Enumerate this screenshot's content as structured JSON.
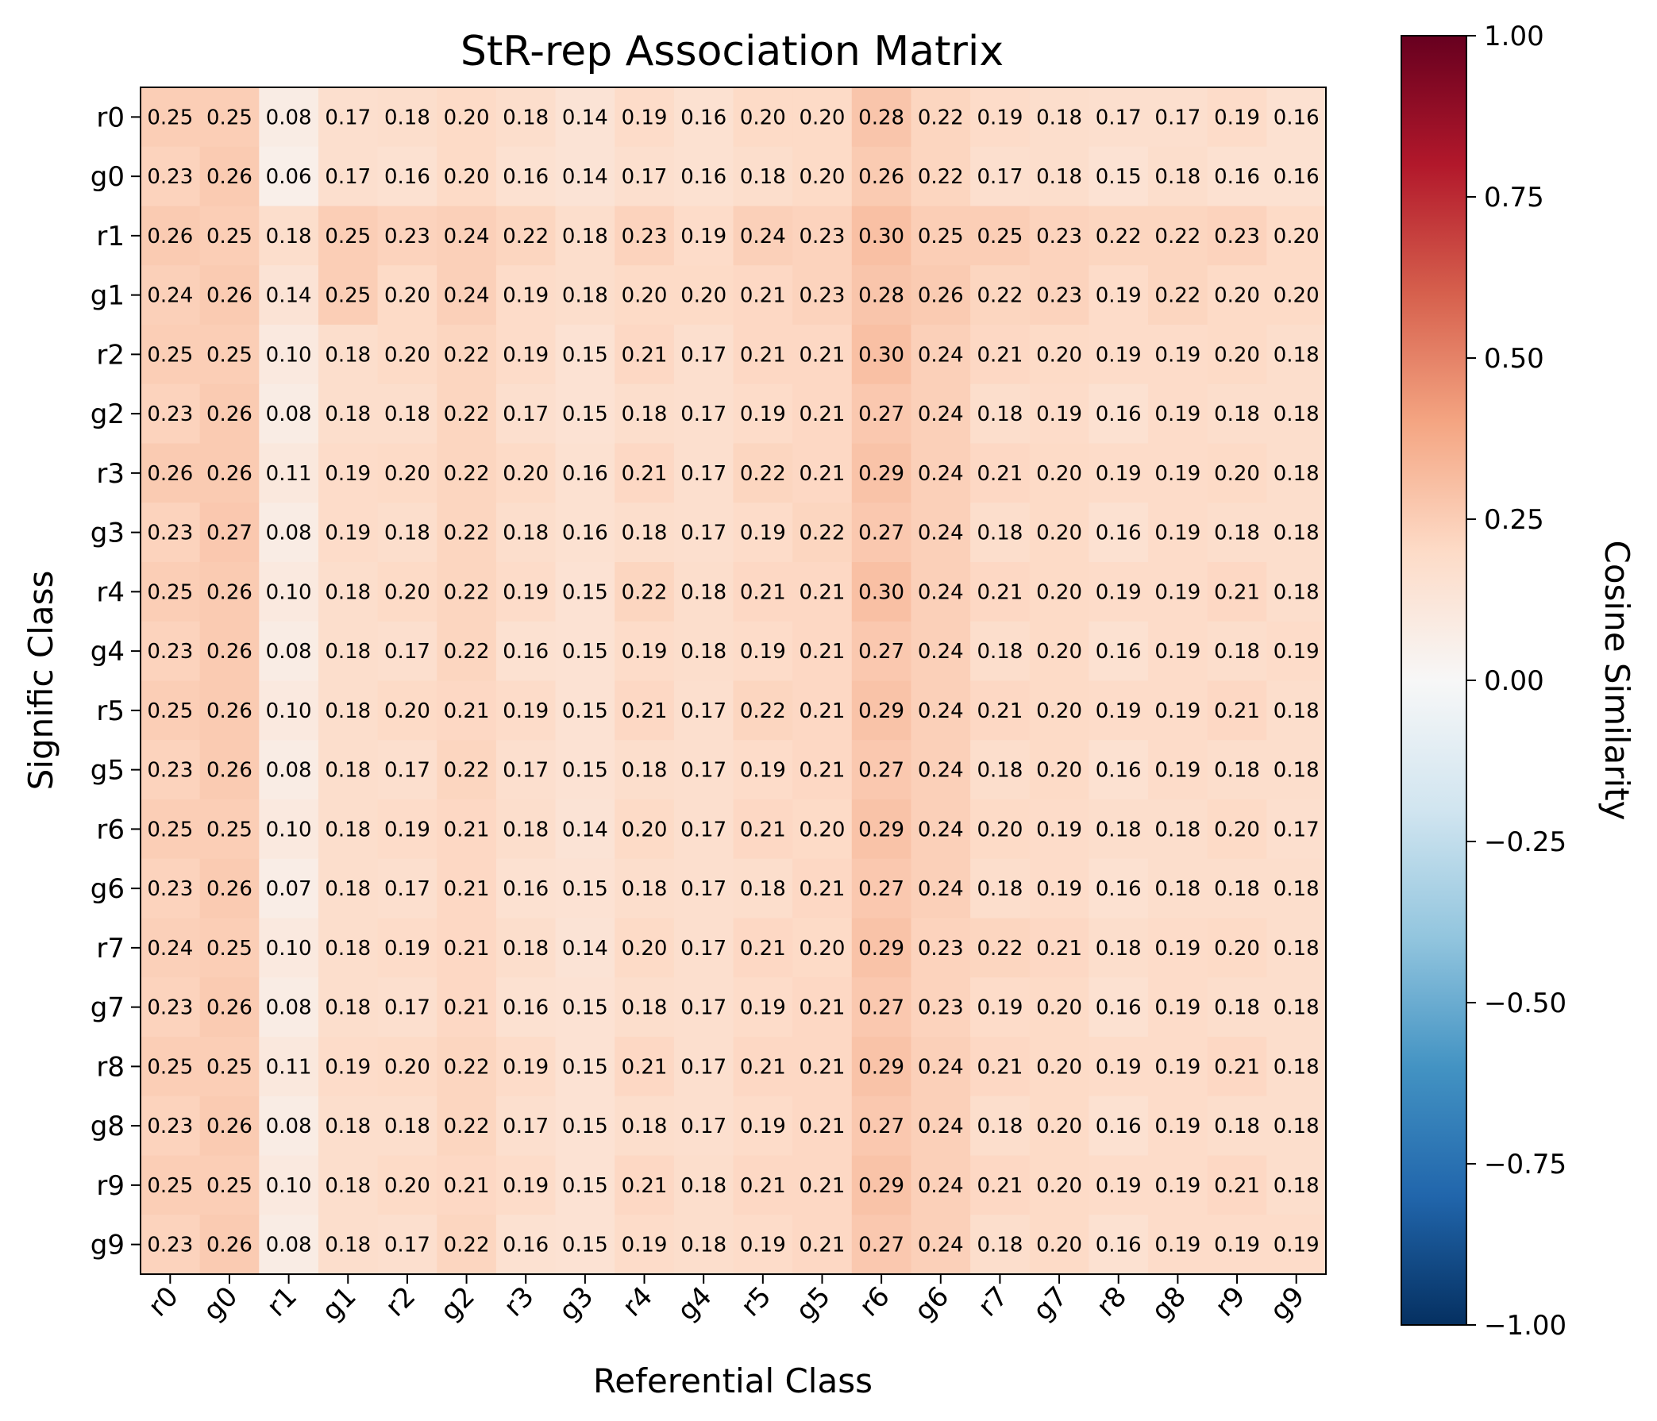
{
  "chart_data": {
    "type": "heatmap",
    "title": "StR-rep Association Matrix",
    "xlabel": "Referential Class",
    "ylabel": "Signific Class",
    "x_categories": [
      "r0",
      "g0",
      "r1",
      "g1",
      "r2",
      "g2",
      "r3",
      "g3",
      "r4",
      "g4",
      "r5",
      "g5",
      "r6",
      "g6",
      "r7",
      "g7",
      "r8",
      "g8",
      "r9",
      "g9"
    ],
    "y_categories": [
      "r0",
      "g0",
      "r1",
      "g1",
      "r2",
      "g2",
      "r3",
      "g3",
      "r4",
      "g4",
      "r5",
      "g5",
      "r6",
      "g6",
      "r7",
      "g7",
      "r8",
      "g8",
      "r9",
      "g9"
    ],
    "values": [
      [
        0.25,
        0.25,
        0.08,
        0.17,
        0.18,
        0.2,
        0.18,
        0.14,
        0.19,
        0.16,
        0.2,
        0.2,
        0.28,
        0.22,
        0.19,
        0.18,
        0.17,
        0.17,
        0.19,
        0.16
      ],
      [
        0.23,
        0.26,
        0.06,
        0.17,
        0.16,
        0.2,
        0.16,
        0.14,
        0.17,
        0.16,
        0.18,
        0.2,
        0.26,
        0.22,
        0.17,
        0.18,
        0.15,
        0.18,
        0.16,
        0.16
      ],
      [
        0.26,
        0.25,
        0.18,
        0.25,
        0.23,
        0.24,
        0.22,
        0.18,
        0.23,
        0.19,
        0.24,
        0.23,
        0.3,
        0.25,
        0.25,
        0.23,
        0.22,
        0.22,
        0.23,
        0.2
      ],
      [
        0.24,
        0.26,
        0.14,
        0.25,
        0.2,
        0.24,
        0.19,
        0.18,
        0.2,
        0.2,
        0.21,
        0.23,
        0.28,
        0.26,
        0.22,
        0.23,
        0.19,
        0.22,
        0.2,
        0.2
      ],
      [
        0.25,
        0.25,
        0.1,
        0.18,
        0.2,
        0.22,
        0.19,
        0.15,
        0.21,
        0.17,
        0.21,
        0.21,
        0.3,
        0.24,
        0.21,
        0.2,
        0.19,
        0.19,
        0.2,
        0.18
      ],
      [
        0.23,
        0.26,
        0.08,
        0.18,
        0.18,
        0.22,
        0.17,
        0.15,
        0.18,
        0.17,
        0.19,
        0.21,
        0.27,
        0.24,
        0.18,
        0.19,
        0.16,
        0.19,
        0.18,
        0.18
      ],
      [
        0.26,
        0.26,
        0.11,
        0.19,
        0.2,
        0.22,
        0.2,
        0.16,
        0.21,
        0.17,
        0.22,
        0.21,
        0.29,
        0.24,
        0.21,
        0.2,
        0.19,
        0.19,
        0.2,
        0.18
      ],
      [
        0.23,
        0.27,
        0.08,
        0.19,
        0.18,
        0.22,
        0.18,
        0.16,
        0.18,
        0.17,
        0.19,
        0.22,
        0.27,
        0.24,
        0.18,
        0.2,
        0.16,
        0.19,
        0.18,
        0.18
      ],
      [
        0.25,
        0.26,
        0.1,
        0.18,
        0.2,
        0.22,
        0.19,
        0.15,
        0.22,
        0.18,
        0.21,
        0.21,
        0.3,
        0.24,
        0.21,
        0.2,
        0.19,
        0.19,
        0.21,
        0.18
      ],
      [
        0.23,
        0.26,
        0.08,
        0.18,
        0.17,
        0.22,
        0.16,
        0.15,
        0.19,
        0.18,
        0.19,
        0.21,
        0.27,
        0.24,
        0.18,
        0.2,
        0.16,
        0.19,
        0.18,
        0.19
      ],
      [
        0.25,
        0.26,
        0.1,
        0.18,
        0.2,
        0.21,
        0.19,
        0.15,
        0.21,
        0.17,
        0.22,
        0.21,
        0.29,
        0.24,
        0.21,
        0.2,
        0.19,
        0.19,
        0.21,
        0.18
      ],
      [
        0.23,
        0.26,
        0.08,
        0.18,
        0.17,
        0.22,
        0.17,
        0.15,
        0.18,
        0.17,
        0.19,
        0.21,
        0.27,
        0.24,
        0.18,
        0.2,
        0.16,
        0.19,
        0.18,
        0.18
      ],
      [
        0.25,
        0.25,
        0.1,
        0.18,
        0.19,
        0.21,
        0.18,
        0.14,
        0.2,
        0.17,
        0.21,
        0.2,
        0.29,
        0.24,
        0.2,
        0.19,
        0.18,
        0.18,
        0.2,
        0.17
      ],
      [
        0.23,
        0.26,
        0.07,
        0.18,
        0.17,
        0.21,
        0.16,
        0.15,
        0.18,
        0.17,
        0.18,
        0.21,
        0.27,
        0.24,
        0.18,
        0.19,
        0.16,
        0.18,
        0.18,
        0.18
      ],
      [
        0.24,
        0.25,
        0.1,
        0.18,
        0.19,
        0.21,
        0.18,
        0.14,
        0.2,
        0.17,
        0.21,
        0.2,
        0.29,
        0.23,
        0.22,
        0.21,
        0.18,
        0.19,
        0.2,
        0.18
      ],
      [
        0.23,
        0.26,
        0.08,
        0.18,
        0.17,
        0.21,
        0.16,
        0.15,
        0.18,
        0.17,
        0.19,
        0.21,
        0.27,
        0.23,
        0.19,
        0.2,
        0.16,
        0.19,
        0.18,
        0.18
      ],
      [
        0.25,
        0.25,
        0.11,
        0.19,
        0.2,
        0.22,
        0.19,
        0.15,
        0.21,
        0.17,
        0.21,
        0.21,
        0.29,
        0.24,
        0.21,
        0.2,
        0.19,
        0.19,
        0.21,
        0.18
      ],
      [
        0.23,
        0.26,
        0.08,
        0.18,
        0.18,
        0.22,
        0.17,
        0.15,
        0.18,
        0.17,
        0.19,
        0.21,
        0.27,
        0.24,
        0.18,
        0.2,
        0.16,
        0.19,
        0.18,
        0.18
      ],
      [
        0.25,
        0.25,
        0.1,
        0.18,
        0.2,
        0.21,
        0.19,
        0.15,
        0.21,
        0.18,
        0.21,
        0.21,
        0.29,
        0.24,
        0.21,
        0.2,
        0.19,
        0.19,
        0.21,
        0.18
      ],
      [
        0.23,
        0.26,
        0.08,
        0.18,
        0.17,
        0.22,
        0.16,
        0.15,
        0.19,
        0.18,
        0.19,
        0.21,
        0.27,
        0.24,
        0.18,
        0.2,
        0.16,
        0.19,
        0.19,
        0.19
      ]
    ],
    "value_format": "0.00",
    "colormap": "RdBu_r",
    "vmin": -1.0,
    "vmax": 1.0,
    "colorbar": {
      "label": "Cosine Similarity",
      "ticks": [
        1.0,
        0.75,
        0.5,
        0.25,
        0.0,
        -0.25,
        -0.5,
        -0.75,
        -1.0
      ],
      "tick_labels": [
        "1.00",
        "0.75",
        "0.50",
        "0.25",
        "0.00",
        "−0.25",
        "−0.50",
        "−0.75",
        "−1.00"
      ]
    },
    "grid": false
  }
}
